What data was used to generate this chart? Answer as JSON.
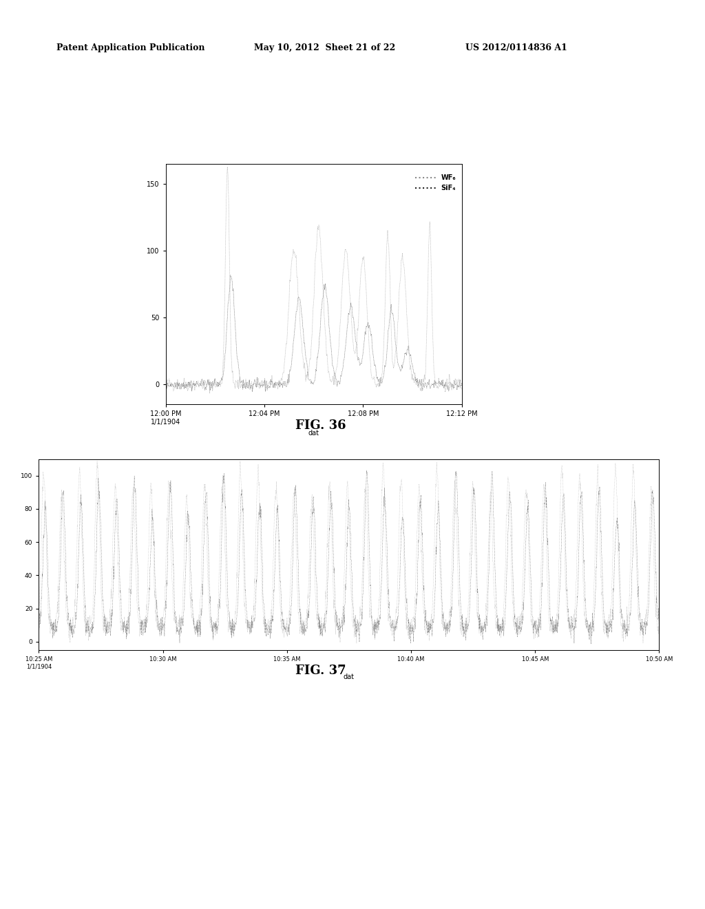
{
  "header_left": "Patent Application Publication",
  "header_mid": "May 10, 2012  Sheet 21 of 22",
  "header_right": "US 2012/0114836 A1",
  "fig36": {
    "title": "FIG. 36",
    "xlabel": "dat",
    "ylabel": "",
    "ylim": [
      -15,
      165
    ],
    "yticks": [
      0,
      50,
      100,
      150
    ],
    "xtick_labels": [
      "12:00 PM\n1/1/1904",
      "12:04 PM",
      "12:08 PM",
      "12:12 PM"
    ],
    "legend_wf6": "WF₆",
    "legend_sif4": "SiF₄"
  },
  "fig37": {
    "title": "FIG. 37",
    "xlabel": "dat",
    "ylabel": "",
    "ylim": [
      -5,
      110
    ],
    "yticks": [
      0,
      20,
      40,
      60,
      80,
      100
    ],
    "xtick_labels": [
      "10:25 AM\n1/1/1904",
      "10:30 AM",
      "10:35 AM",
      "10:40 AM",
      "10:45 AM",
      "10:50 AM"
    ]
  },
  "bg_color": "#ffffff",
  "line_color_wf6": "#888888",
  "line_color_sif4": "#222222"
}
